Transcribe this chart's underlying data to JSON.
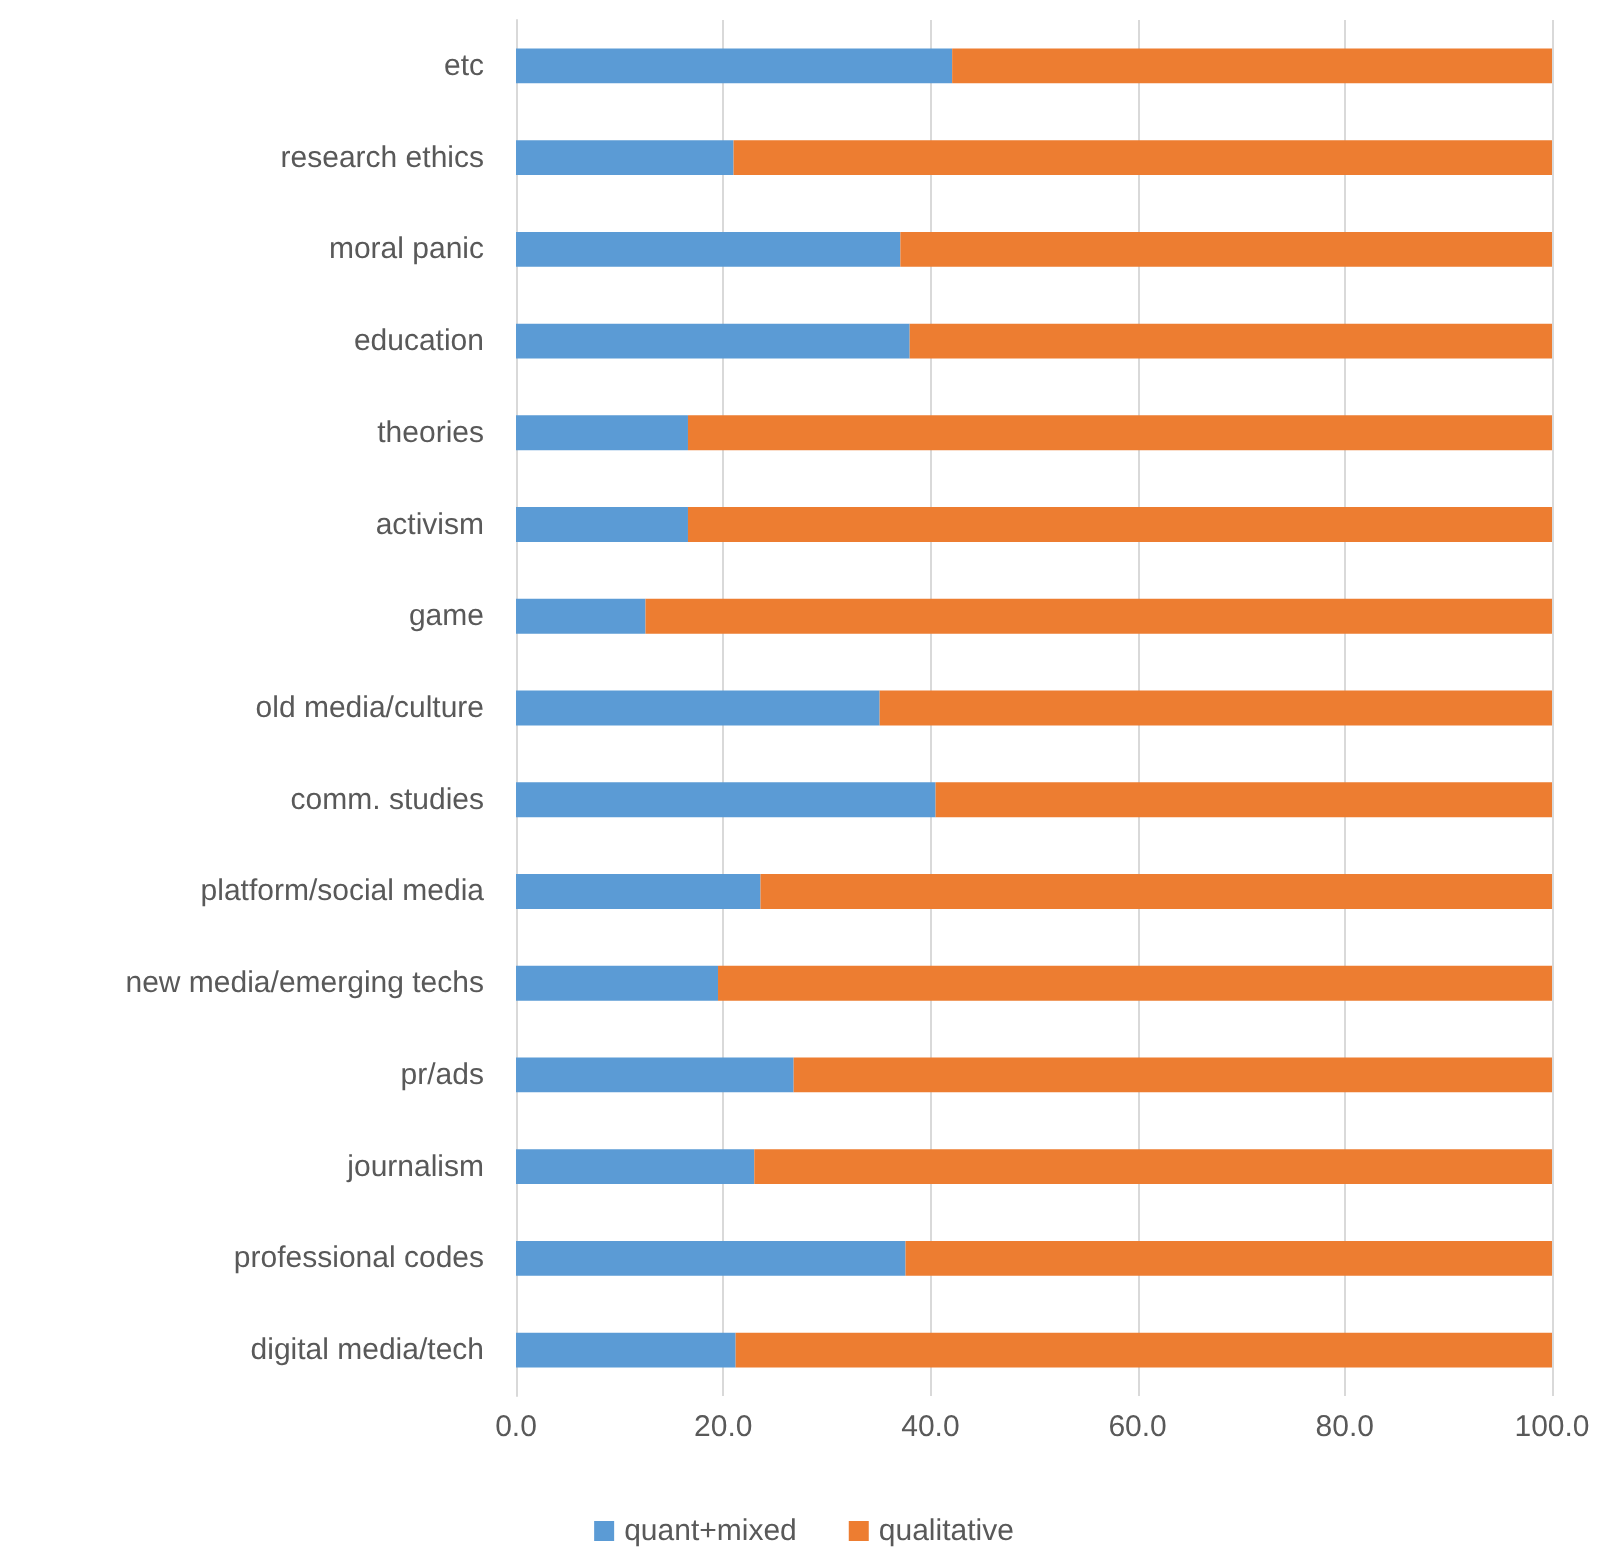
{
  "chart_data": {
    "type": "bar",
    "orientation": "horizontal",
    "stacked": true,
    "categories": [
      "etc",
      "research ethics",
      "moral panic",
      "education",
      "theories",
      "activism",
      "game",
      "old media/culture",
      "comm. studies",
      "platform/social media",
      "new media/emerging techs",
      "pr/ads",
      "journalism",
      "professional codes",
      "digital media/tech"
    ],
    "series": [
      {
        "name": "quant+mixed",
        "color": "#5b9bd5",
        "values": [
          42.1,
          21.0,
          37.1,
          38.0,
          16.6,
          16.6,
          12.5,
          35.1,
          40.5,
          23.6,
          19.5,
          26.8,
          23.0,
          37.6,
          21.2
        ]
      },
      {
        "name": "qualitative",
        "color": "#ed7d31",
        "values": [
          57.9,
          79.0,
          62.9,
          62.0,
          83.4,
          83.4,
          87.5,
          64.9,
          59.5,
          76.4,
          80.5,
          73.2,
          77.0,
          62.4,
          78.8
        ]
      }
    ],
    "xlim": [
      0,
      100
    ],
    "xticks": [
      {
        "value": 0,
        "label": "0.0"
      },
      {
        "value": 20,
        "label": "20.0"
      },
      {
        "value": 40,
        "label": "40.0"
      },
      {
        "value": 60,
        "label": "60.0"
      },
      {
        "value": 80,
        "label": "80.0"
      },
      {
        "value": 100,
        "label": "100.0"
      }
    ],
    "grid": "x",
    "legend": "bottom"
  }
}
